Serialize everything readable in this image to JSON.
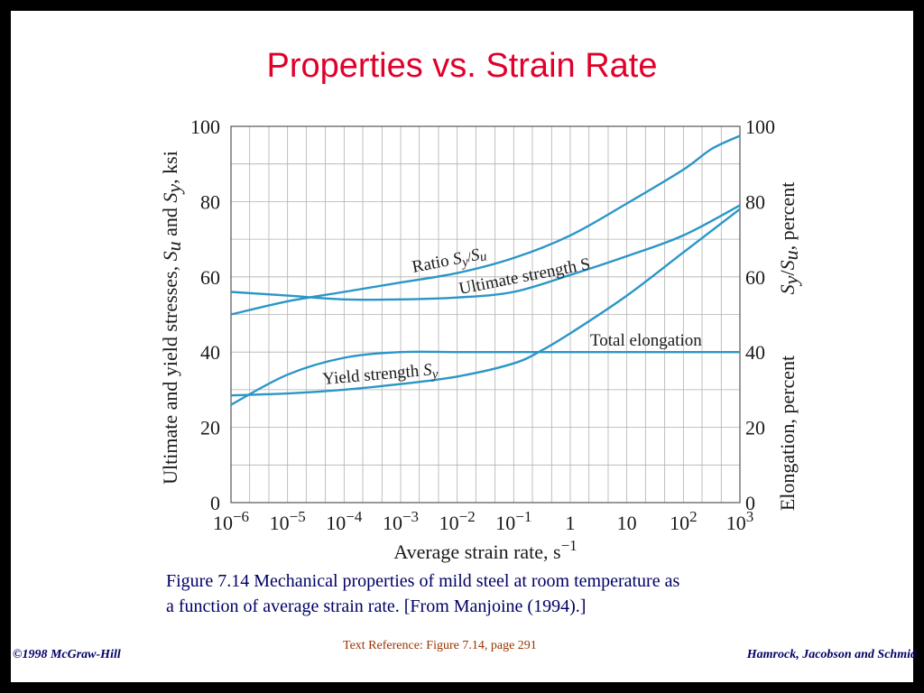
{
  "title": "Properties vs. Strain Rate",
  "caption_line1": "Figure 7.14  Mechanical properties of mild steel at room temperature as",
  "caption_line2": "a function of average strain rate. [From Manjoine (1994).]",
  "footer": {
    "left": "©1998 McGraw-Hill",
    "center": "Text Reference:  Figure 7.14,  page 291",
    "right": "Hamrock, Jacobson and Schmid"
  },
  "colors": {
    "curve": "#2a96c8",
    "title": "#e0002a",
    "grid": "#b0b0b0",
    "text": "#000066"
  },
  "chart_data": {
    "type": "line",
    "xlabel": "Average strain rate, s⁻¹",
    "ylabel_left": "Ultimate and yield stresses, Su and Sy, ksi",
    "ylabel_right_upper": "Sy/Su, percent",
    "ylabel_right_lower": "Elongation, percent",
    "x_scale": "log",
    "xlim": [
      -6,
      3
    ],
    "ylim": [
      0,
      100
    ],
    "grid": true,
    "x_ticks": [
      {
        "base": "10",
        "exp": "−6",
        "x": -6
      },
      {
        "base": "10",
        "exp": "−5",
        "x": -5
      },
      {
        "base": "10",
        "exp": "−4",
        "x": -4
      },
      {
        "base": "10",
        "exp": "−3",
        "x": -3
      },
      {
        "base": "10",
        "exp": "−2",
        "x": -2
      },
      {
        "base": "10",
        "exp": "−1",
        "x": -1
      },
      {
        "base": "1",
        "exp": "",
        "x": 0
      },
      {
        "base": "10",
        "exp": "",
        "x": 1
      },
      {
        "base": "10",
        "exp": "2",
        "x": 2
      },
      {
        "base": "10",
        "exp": "3",
        "x": 3
      }
    ],
    "y_ticks_left": [
      "0",
      "20",
      "40",
      "60",
      "80",
      "100"
    ],
    "y_ticks_right": [
      "0",
      "20",
      "40",
      "60",
      "80",
      "100"
    ],
    "series": [
      {
        "key": "ratio",
        "label": "Ratio Sy/Su",
        "x": [
          -6,
          -5,
          -4,
          -3,
          -2,
          -1,
          0,
          1,
          2,
          2.5,
          3
        ],
        "y": [
          50,
          53.5,
          56,
          58.5,
          61,
          65,
          71,
          79.5,
          88.5,
          94,
          97.5
        ]
      },
      {
        "key": "ultimate",
        "label": "Ultimate strength S",
        "x": [
          -6,
          -5,
          -4,
          -3,
          -2,
          -1,
          0,
          1,
          2,
          3
        ],
        "y": [
          56,
          55,
          54,
          54,
          54.5,
          56,
          60.5,
          65.5,
          71,
          79
        ]
      },
      {
        "key": "elongation",
        "label": "Total elongation",
        "x": [
          -6,
          -5,
          -4,
          -3,
          -2,
          -1,
          0,
          1,
          2,
          3
        ],
        "y": [
          26,
          34,
          38.5,
          40,
          40,
          40,
          40,
          40,
          40,
          40
        ]
      },
      {
        "key": "yield",
        "label": "Yield strength Sy",
        "x": [
          -6,
          -5,
          -4,
          -3,
          -2,
          -1,
          -0.5,
          0,
          1,
          2,
          3
        ],
        "y": [
          28.5,
          29,
          30,
          31.5,
          33.5,
          37,
          40.5,
          45,
          55,
          66.5,
          78
        ]
      }
    ]
  }
}
